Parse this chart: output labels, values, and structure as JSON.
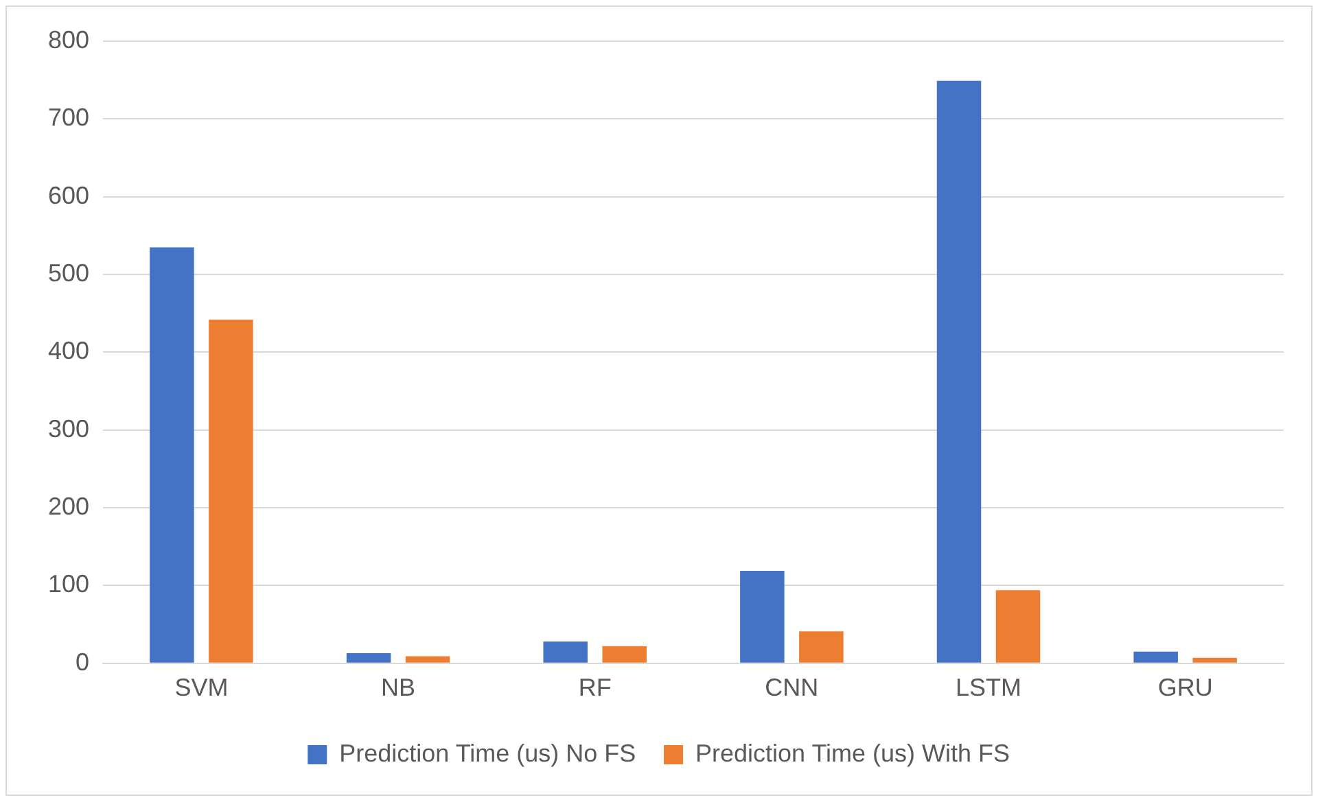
{
  "chart_data": {
    "type": "bar",
    "categories": [
      "SVM",
      "NB",
      "RF",
      "CNN",
      "LSTM",
      "GRU"
    ],
    "series": [
      {
        "name": "Prediction Time (us) No FS",
        "color": "#4472c4",
        "values": [
          535,
          13,
          28,
          119,
          749,
          15
        ]
      },
      {
        "name": "Prediction Time (us) With FS",
        "color": "#ed7d31",
        "values": [
          442,
          9,
          22,
          41,
          94,
          7
        ]
      }
    ],
    "ylim": [
      0,
      800
    ],
    "yticks": [
      0,
      100,
      200,
      300,
      400,
      500,
      600,
      700,
      800
    ],
    "grid": "y",
    "legend": "bottom"
  }
}
